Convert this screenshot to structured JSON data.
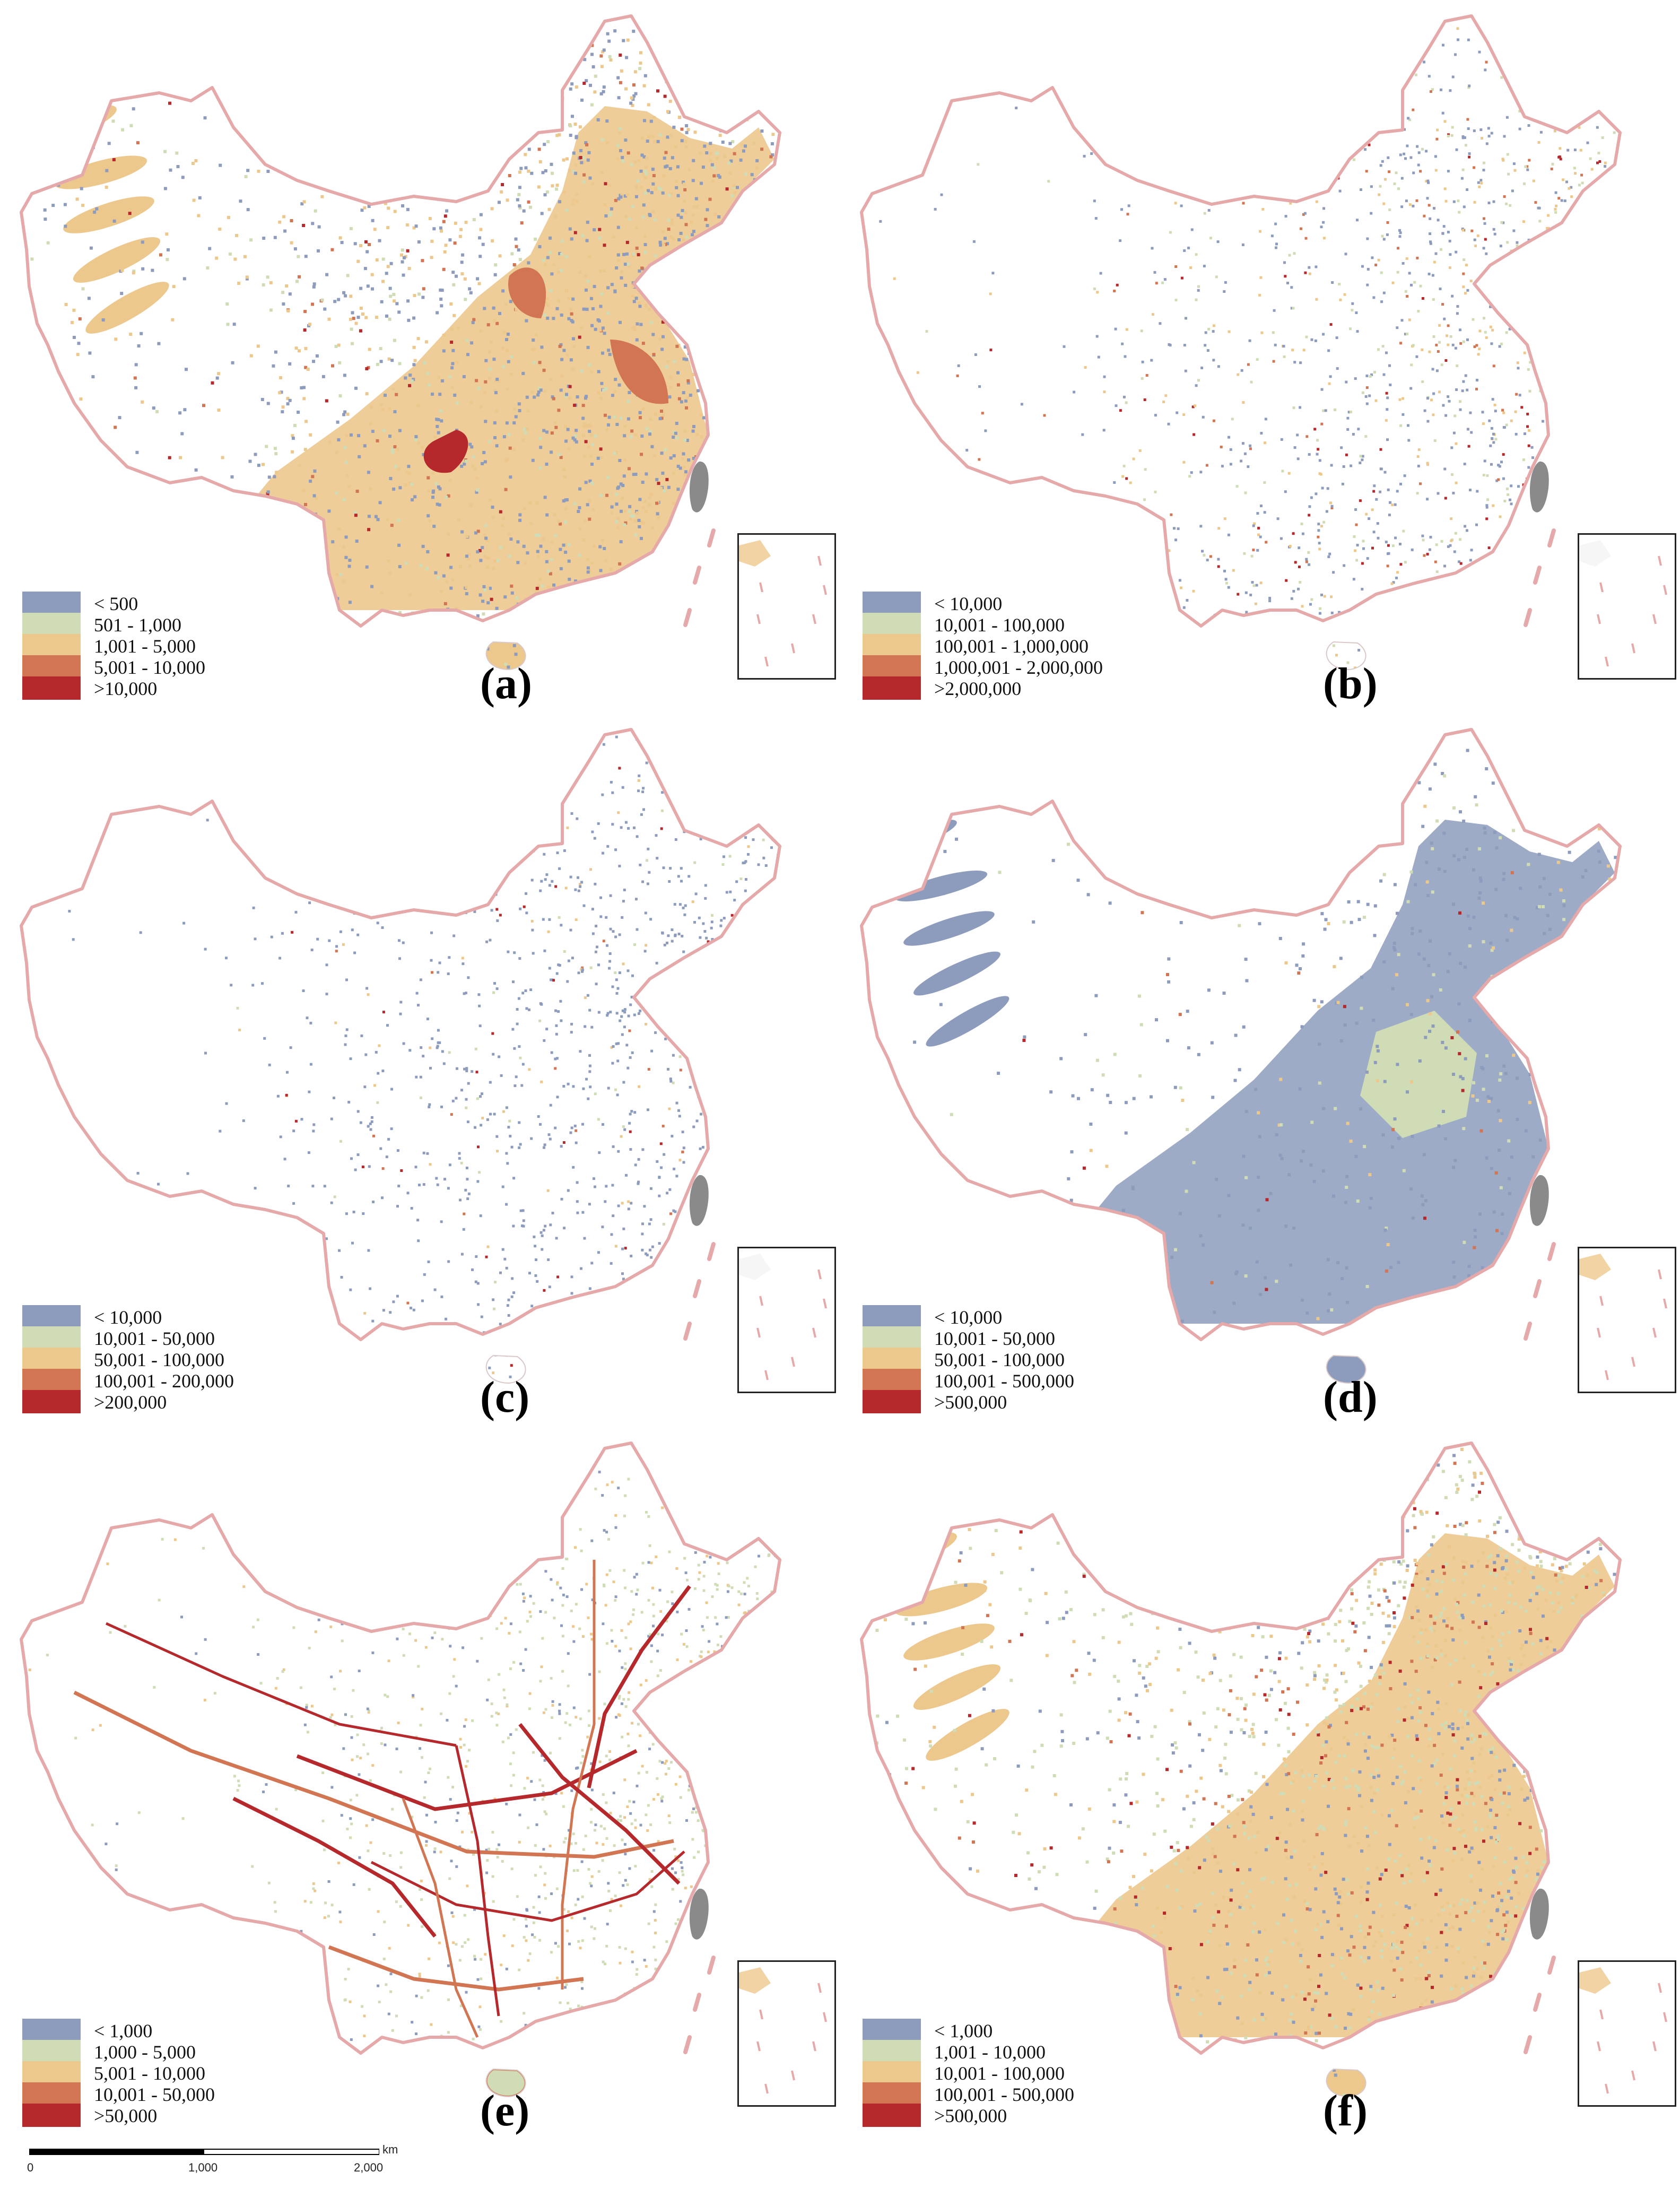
{
  "panels": [
    {
      "id": "a",
      "label": "(a)",
      "legend": [
        "< 500",
        "501 - 1,000",
        "1,001 - 5,000",
        "5,001 - 10,000",
        ">10,000"
      ],
      "pattern": "dense-general"
    },
    {
      "id": "b",
      "label": "(b)",
      "legend": [
        "< 10,000",
        "10,001 - 100,000",
        "100,001 - 1,000,000",
        "1,000,001 - 2,000,000",
        ">2,000,000"
      ],
      "pattern": "sparse-points"
    },
    {
      "id": "c",
      "label": "(c)",
      "legend": [
        "< 10,000",
        "10,001 - 50,000",
        "50,001 - 100,000",
        "100,001 - 200,000",
        ">200,000"
      ],
      "pattern": "sparse-east"
    },
    {
      "id": "d",
      "label": "(d)",
      "legend": [
        "< 10,000",
        "10,001 - 50,000",
        "50,001 - 100,000",
        "100,001 - 500,000",
        ">500,000"
      ],
      "pattern": "blue-east"
    },
    {
      "id": "e",
      "label": "(e)",
      "legend": [
        "< 1,000",
        "1,000 - 5,000",
        "5,001 - 10,000",
        "10,001 - 50,000",
        ">50,000"
      ],
      "pattern": "roads"
    },
    {
      "id": "f",
      "label": "(f)",
      "legend": [
        "< 1,000",
        "1,001 - 10,000",
        "10,001 - 100,000",
        "100,001 - 500,000",
        ">500,000"
      ],
      "pattern": "dense-general"
    }
  ],
  "legend_colors": [
    "#8d9cbc",
    "#cfdcb5",
    "#edc88d",
    "#d17552",
    "#b5282b"
  ],
  "border_color": "#e5a9aa",
  "taiwan_color": "#8a8a8a",
  "scale_bar": {
    "ticks": [
      "0",
      "1,000",
      "2,000"
    ],
    "unit": "km"
  }
}
